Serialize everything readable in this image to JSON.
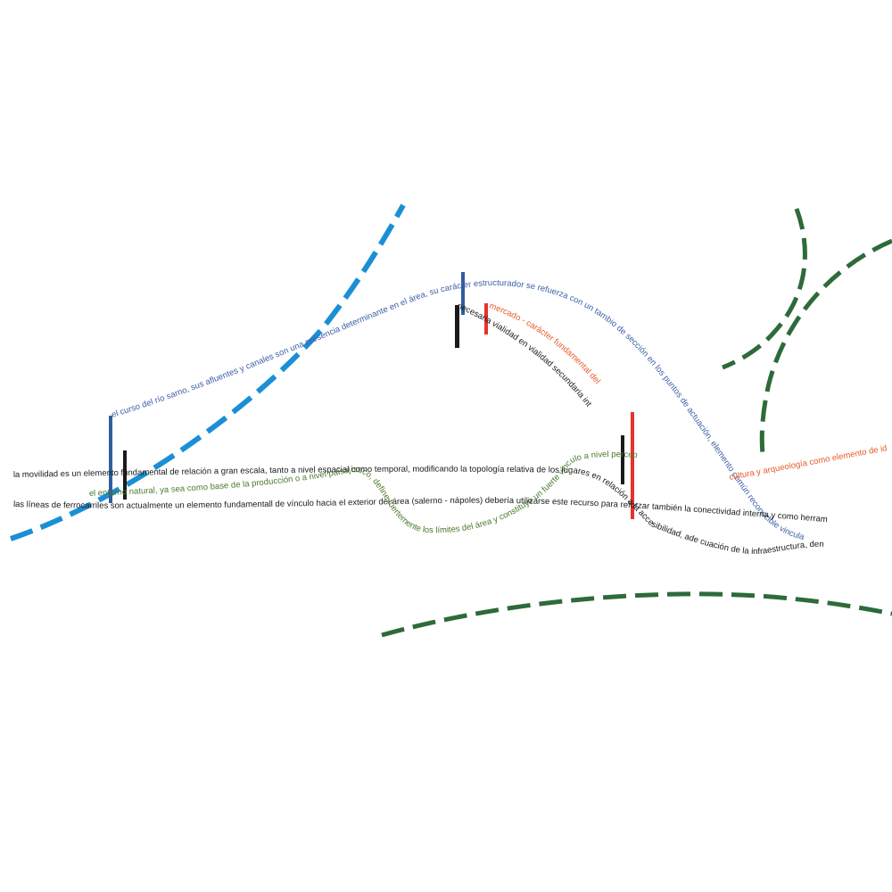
{
  "texts": {
    "rio_sarno": "el curso del río sarno, sus afluentes y canales son una presencia determinante en el área, su carácter estructurador se refuerza con un tambio de sección en los puntos de actuación, elemento común reconocible vinculando cada proyecto",
    "movilidad": "la movilidad es un elemento fundamental de relación a gran escala, tanto a nivel espacial como temporal, modificando la topología relativa de los lugares en relación a la accesibilidad, ade cuación de la infraestructura, densidad y congestión vehicular",
    "entorno_natural": "el entorno natural, ya sea como base de la producción o a nivel paisajístico, define fuertemente los límites del área y constituye un fuerte vínculo a nivel perceptivo entre puntos",
    "lineas_ferroviarias": "las líneas de ferrocarriles son actualmente un elemento fundamentall de vínculo hacia el exterior del área (salerno - nápoles) debería utilizarse este recurso para reforzar también la conectividad interna,y como herramienta de descongestión",
    "mercado": "mercado - carácter fundamental del lugar",
    "vialidad": "necesaria vialidad en vialidad secundaria interior",
    "cultura": "cultura y arqueología como elemento de identidad"
  },
  "colors": {
    "river_blue": "#1b8fd6",
    "text_blue": "#3d5fa8",
    "dark_green": "#2d6b3a",
    "text_green": "#4a7a2c",
    "text_black": "#1a1a1a",
    "accent_red": "#e8322a",
    "text_orange": "#e85a2a",
    "marker_blue": "#2f5f9e"
  }
}
